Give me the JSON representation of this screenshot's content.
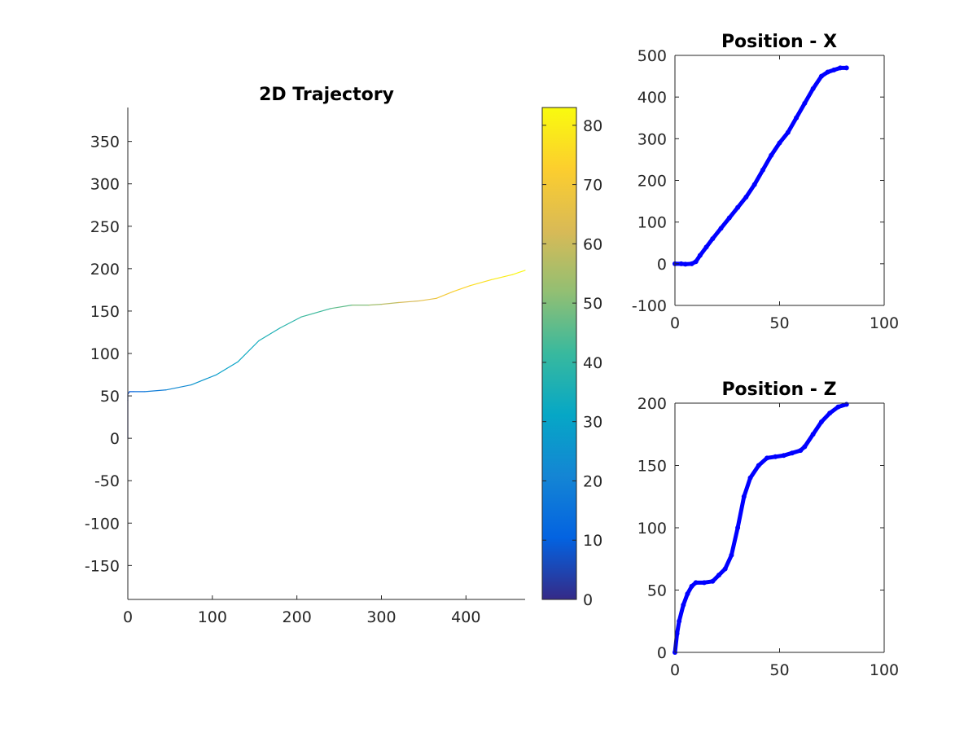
{
  "chart_data": [
    {
      "id": "trajectory",
      "type": "line",
      "title": "2D Trajectory",
      "xlabel": "",
      "ylabel": "",
      "xlim": [
        0,
        470
      ],
      "ylim": [
        -190,
        390
      ],
      "xticks": [
        0,
        100,
        200,
        300,
        400
      ],
      "yticks": [
        -150,
        -100,
        -50,
        0,
        50,
        100,
        150,
        200,
        250,
        300,
        350
      ],
      "box": false,
      "grid": false,
      "colored_by": "time",
      "colormap": "parula",
      "colormap_stops": [
        "#352a87",
        "#0363e1",
        "#1485d4",
        "#06a7c6",
        "#38b99e",
        "#92bf73",
        "#d9ba56",
        "#fcce2e",
        "#f9fb0e"
      ],
      "clim": [
        0,
        83
      ],
      "colorbar": {
        "location": "right",
        "ticks": [
          0,
          10,
          20,
          30,
          40,
          50,
          60,
          70,
          80
        ]
      },
      "t": [
        0,
        3,
        5,
        8,
        12,
        16,
        20,
        24,
        28,
        31,
        34,
        37,
        40,
        44,
        48,
        52,
        56,
        60,
        64,
        68,
        72,
        75,
        78,
        81,
        83
      ],
      "x": [
        0,
        0,
        0,
        2,
        7,
        20,
        45,
        75,
        105,
        130,
        155,
        180,
        205,
        240,
        265,
        285,
        300,
        320,
        345,
        365,
        385,
        405,
        430,
        455,
        470
      ],
      "y": [
        0,
        45,
        52,
        55,
        55,
        55,
        57,
        63,
        75,
        90,
        115,
        130,
        143,
        153,
        157,
        157,
        158,
        160,
        162,
        165,
        173,
        180,
        187,
        193,
        198
      ]
    },
    {
      "id": "position-x",
      "type": "scatter",
      "title": "Position - X",
      "xlim": [
        0,
        100
      ],
      "ylim": [
        -100,
        500
      ],
      "xticks": [
        0,
        50,
        100
      ],
      "yticks": [
        -100,
        0,
        100,
        200,
        300,
        400,
        500
      ],
      "box": true,
      "marker_color": "#0000ff",
      "x": [
        0,
        3,
        5,
        8,
        10,
        12,
        15,
        18,
        22,
        26,
        30,
        34,
        38,
        42,
        46,
        50,
        54,
        58,
        62,
        66,
        70,
        73,
        76,
        79,
        82
      ],
      "y": [
        0,
        0,
        -1,
        0,
        5,
        20,
        40,
        60,
        85,
        110,
        135,
        160,
        190,
        225,
        260,
        290,
        315,
        350,
        385,
        420,
        450,
        460,
        465,
        470,
        470
      ]
    },
    {
      "id": "position-z",
      "type": "scatter",
      "title": "Position - Z",
      "xlim": [
        0,
        100
      ],
      "ylim": [
        0,
        200
      ],
      "xticks": [
        0,
        50,
        100
      ],
      "yticks": [
        0,
        50,
        100,
        150,
        200
      ],
      "box": true,
      "marker_color": "#0000ff",
      "x": [
        0,
        1,
        2,
        4,
        6,
        8,
        10,
        14,
        18,
        21,
        24,
        27,
        30,
        33,
        36,
        40,
        44,
        48,
        52,
        56,
        60,
        62,
        66,
        70,
        74,
        78,
        82
      ],
      "y": [
        0,
        15,
        25,
        38,
        47,
        53,
        56,
        56,
        57,
        62,
        67,
        78,
        100,
        125,
        140,
        150,
        156,
        157,
        158,
        160,
        162,
        165,
        175,
        185,
        192,
        197,
        199
      ]
    }
  ]
}
